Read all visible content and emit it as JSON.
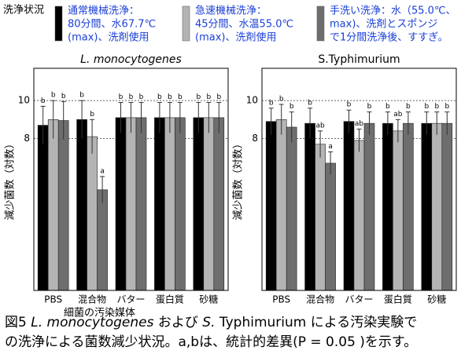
{
  "legend": {
    "title": "洗浄状況",
    "entries": [
      {
        "lines": [
          "通常機械洗浄：",
          "80分間、水67.7℃",
          "(max)、洗剤使用"
        ]
      },
      {
        "lines": [
          "急速機械洗浄：",
          "45分間、水温55.0℃",
          "(max)、洗剤使用"
        ]
      },
      {
        "lines": [
          "手洗い洗浄：水（55.0℃、",
          "max)、洗剤とスポンジ",
          "で1分間洗浄後、すすぎ。"
        ]
      }
    ]
  },
  "chart_data": [
    {
      "type": "bar",
      "title": "L. monocytogenes",
      "ylabel": "減少菌数（対数）",
      "xlabel": "細菌の汚染媒体",
      "categories": [
        "PBS",
        "混合物",
        "バター",
        "蛋白質",
        "砂糖"
      ],
      "ylim": [
        0,
        11.7
      ],
      "yticks": [
        8,
        10
      ],
      "grid": true,
      "series": [
        {
          "color": "#000000",
          "values": [
            8.7,
            9.0,
            9.1,
            9.1,
            9.1
          ],
          "errors": [
            1.0,
            1.0,
            0.8,
            0.8,
            0.8
          ],
          "letters": [
            "b",
            "b",
            "b",
            "b",
            "b"
          ]
        },
        {
          "color": "#b4b4b4",
          "values": [
            9.0,
            8.1,
            9.1,
            9.1,
            9.1
          ],
          "errors": [
            1.0,
            0.9,
            0.8,
            0.8,
            0.8
          ],
          "letters": [
            "b",
            "b",
            "b",
            "b",
            "b"
          ]
        },
        {
          "color": "#6e6e6e",
          "values": [
            8.95,
            5.3,
            9.1,
            9.1,
            9.1
          ],
          "errors": [
            1.0,
            0.7,
            0.8,
            0.8,
            0.8
          ],
          "letters": [
            "b",
            "a",
            "b",
            "b",
            "b"
          ]
        }
      ]
    },
    {
      "type": "bar",
      "title": "S.Typhimurium",
      "ylabel": "減少菌数（対数）",
      "categories": [
        "PBS",
        "混合物",
        "バター",
        "蛋白質",
        "砂糖"
      ],
      "ylim": [
        0,
        11.7
      ],
      "yticks": [
        8,
        10
      ],
      "grid": true,
      "series": [
        {
          "color": "#000000",
          "values": [
            8.9,
            8.8,
            8.9,
            8.8,
            8.8
          ],
          "errors": [
            0.7,
            0.8,
            0.6,
            0.6,
            0.6
          ],
          "letters": [
            "b",
            "b",
            "b",
            "b",
            "b"
          ]
        },
        {
          "color": "#b4b4b4",
          "values": [
            9.0,
            7.7,
            7.9,
            8.4,
            8.8
          ],
          "errors": [
            0.8,
            0.7,
            0.6,
            0.6,
            0.6
          ],
          "letters": [
            "b",
            "ab",
            "ab",
            "ab",
            "b"
          ]
        },
        {
          "color": "#6e6e6e",
          "values": [
            8.6,
            6.7,
            8.8,
            8.8,
            8.8
          ],
          "errors": [
            0.8,
            0.6,
            0.6,
            0.6,
            0.6
          ],
          "letters": [
            "b",
            "a",
            "b",
            "b",
            "b"
          ]
        }
      ]
    }
  ],
  "caption": {
    "line1": [
      "図5 ",
      "L. monocytogenes",
      " および ",
      "S.",
      " Typhimurium による汚染実験で"
    ],
    "line2": "の洗浄による菌数減少状況。a,bは、統計的差異(P = 0.05 )を示す。"
  }
}
